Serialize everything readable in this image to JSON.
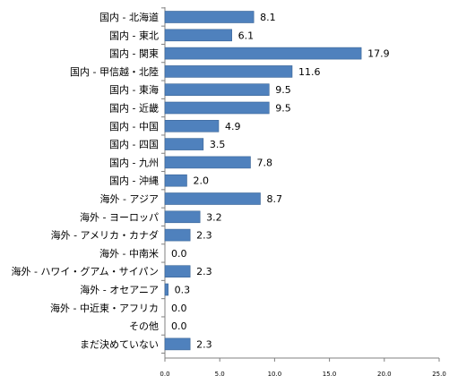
{
  "chart_data": {
    "type": "bar",
    "orientation": "horizontal",
    "title": "",
    "xlabel": "",
    "ylabel": "",
    "categories": [
      "国内 - 北海道",
      "国内 - 東北",
      "国内 - 関東",
      "国内 - 甲信越・北陸",
      "国内 - 東海",
      "国内 - 近畿",
      "国内 - 中国",
      "国内 - 四国",
      "国内 - 九州",
      "国内 - 沖縄",
      "海外 - アジア",
      "海外 - ヨーロッパ",
      "海外 - アメリカ・カナダ",
      "海外 - 中南米",
      "海外 - ハワイ・グアム・サイパン",
      "海外 - オセアニア",
      "海外 - 中近東・アフリカ",
      "その他",
      "まだ決めていない"
    ],
    "values": [
      8.1,
      6.1,
      17.9,
      11.6,
      9.5,
      9.5,
      4.9,
      3.5,
      7.8,
      2.0,
      8.7,
      3.2,
      2.3,
      0.0,
      2.3,
      0.3,
      0.0,
      0.0,
      2.3
    ],
    "value_labels": [
      "8.1",
      "6.1",
      "17.9",
      "11.6",
      "9.5",
      "9.5",
      "4.9",
      "3.5",
      "7.8",
      "2.0",
      "8.7",
      "3.2",
      "2.3",
      "0.0",
      "2.3",
      "0.3",
      "0.0",
      "0.0",
      "2.3"
    ],
    "xlim": [
      0,
      25
    ],
    "x_ticks": [
      0,
      5,
      10,
      15,
      20,
      25
    ],
    "x_tick_labels": [
      "0.0",
      "5.0",
      "10.0",
      "15.0",
      "20.0",
      "25.0"
    ],
    "grid": false,
    "legend": false,
    "bar_color": "#4f81bd",
    "bar_border_color": "#3a6496"
  }
}
